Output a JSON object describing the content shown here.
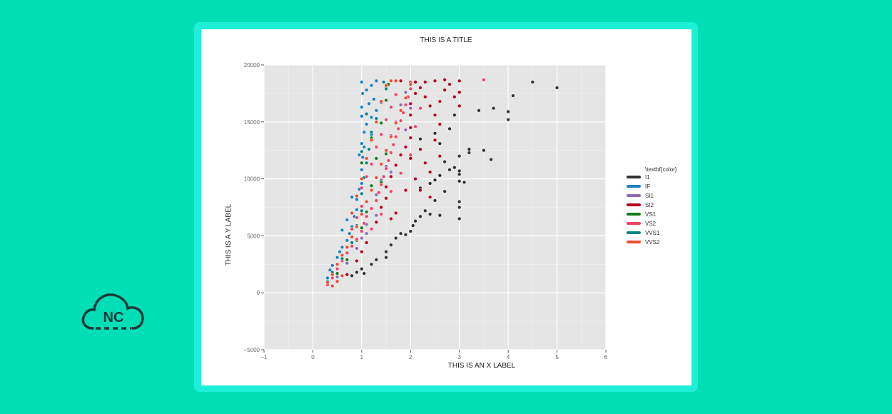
{
  "logo": {
    "text": "NC",
    "color": "#1d3a3a"
  },
  "chart_data": {
    "type": "scatter",
    "title": "THIS IS A TITLE",
    "xlabel": "THIS IS AN X LABEL",
    "ylabel": "THIS IS A Y LABEL",
    "xlim": [
      -1,
      6
    ],
    "ylim": [
      -5000,
      20000
    ],
    "xticks": [
      -1,
      0,
      1,
      2,
      3,
      4,
      5,
      6
    ],
    "yticks": [
      -5000,
      0,
      5000,
      10000,
      15000,
      20000
    ],
    "grid": true,
    "background": "#e5e5e5",
    "legend": {
      "title": "\\textbf{color}",
      "placement": "right",
      "entries": [
        {
          "name": "I1",
          "color": "#333333"
        },
        {
          "name": "IF",
          "color": "#1b82c0"
        },
        {
          "name": "SI1",
          "color": "#8c6bb1"
        },
        {
          "name": "SI2",
          "color": "#b4001e"
        },
        {
          "name": "VS1",
          "color": "#177d1a"
        },
        {
          "name": "VS2",
          "color": "#ee4466"
        },
        {
          "name": "VVS1",
          "color": "#0f8383"
        },
        {
          "name": "VVS2",
          "color": "#f44a30"
        }
      ]
    },
    "series": [
      {
        "name": "I1",
        "color": "#333333",
        "points": [
          [
            0.8,
            1500
          ],
          [
            0.9,
            1800
          ],
          [
            1.0,
            2100
          ],
          [
            1.05,
            1700
          ],
          [
            1.2,
            2500
          ],
          [
            1.3,
            2900
          ],
          [
            1.5,
            3100
          ],
          [
            1.5,
            3600
          ],
          [
            1.6,
            4200
          ],
          [
            1.7,
            4800
          ],
          [
            1.8,
            5200
          ],
          [
            1.9,
            5100
          ],
          [
            2.0,
            5400
          ],
          [
            2.05,
            5900
          ],
          [
            2.1,
            6300
          ],
          [
            2.2,
            6700
          ],
          [
            2.3,
            7200
          ],
          [
            2.4,
            6900
          ],
          [
            2.5,
            8100
          ],
          [
            2.6,
            6800
          ],
          [
            2.7,
            8900
          ],
          [
            2.2,
            9200
          ],
          [
            2.4,
            9600
          ],
          [
            2.5,
            9900
          ],
          [
            2.6,
            10300
          ],
          [
            2.8,
            10800
          ],
          [
            3.0,
            10400
          ],
          [
            3.0,
            9800
          ],
          [
            3.0,
            10700
          ],
          [
            3.0,
            6500
          ],
          [
            3.0,
            8000
          ],
          [
            3.0,
            7500
          ],
          [
            3.1,
            9700
          ],
          [
            2.9,
            11000
          ],
          [
            2.7,
            11500
          ],
          [
            3.0,
            12000
          ],
          [
            3.2,
            12300
          ],
          [
            3.2,
            12600
          ],
          [
            3.5,
            12500
          ],
          [
            3.65,
            11700
          ],
          [
            2.6,
            13100
          ],
          [
            2.8,
            14400
          ],
          [
            2.9,
            15600
          ],
          [
            3.4,
            16000
          ],
          [
            3.7,
            16200
          ],
          [
            4.0,
            15200
          ],
          [
            4.0,
            15900
          ],
          [
            4.1,
            17300
          ],
          [
            4.5,
            18500
          ],
          [
            5.0,
            18000
          ],
          [
            2.2,
            13500
          ],
          [
            2.5,
            14000
          ]
        ]
      },
      {
        "name": "IF",
        "color": "#1b82c0",
        "points": [
          [
            0.3,
            1300
          ],
          [
            0.35,
            2000
          ],
          [
            0.4,
            2400
          ],
          [
            0.5,
            3100
          ],
          [
            0.55,
            3600
          ],
          [
            0.6,
            4000
          ],
          [
            0.7,
            4600
          ],
          [
            0.75,
            5200
          ],
          [
            0.8,
            5800
          ],
          [
            0.85,
            6700
          ],
          [
            0.9,
            7300
          ],
          [
            0.9,
            8200
          ],
          [
            0.95,
            9100
          ],
          [
            1.0,
            9600
          ],
          [
            1.0,
            10800
          ],
          [
            1.02,
            11900
          ],
          [
            1.0,
            13100
          ],
          [
            1.05,
            14100
          ],
          [
            1.0,
            15500
          ],
          [
            1.0,
            16300
          ],
          [
            1.02,
            17500
          ],
          [
            1.0,
            18500
          ],
          [
            1.1,
            17800
          ],
          [
            1.15,
            16600
          ],
          [
            1.2,
            15400
          ],
          [
            1.2,
            18200
          ],
          [
            1.3,
            18600
          ],
          [
            1.25,
            17000
          ],
          [
            1.1,
            14800
          ],
          [
            1.05,
            12800
          ],
          [
            0.95,
            12100
          ],
          [
            0.8,
            8400
          ],
          [
            0.7,
            6400
          ],
          [
            0.6,
            5500
          ],
          [
            1.3,
            16000
          ],
          [
            1.2,
            13900
          ]
        ]
      },
      {
        "name": "SI1",
        "color": "#8c6bb1",
        "points": [
          [
            0.5,
            1400
          ],
          [
            0.7,
            2600
          ],
          [
            0.9,
            3900
          ],
          [
            1.0,
            4800
          ],
          [
            1.1,
            6000
          ],
          [
            1.2,
            7400
          ],
          [
            1.3,
            8600
          ],
          [
            1.4,
            9900
          ],
          [
            1.5,
            11100
          ],
          [
            1.5,
            12400
          ],
          [
            1.6,
            13800
          ],
          [
            1.7,
            15000
          ],
          [
            1.8,
            16500
          ],
          [
            1.9,
            17600
          ],
          [
            2.0,
            18400
          ],
          [
            1.3,
            6800
          ],
          [
            1.1,
            5200
          ],
          [
            1.6,
            10600
          ],
          [
            1.9,
            14300
          ],
          [
            2.0,
            16200
          ]
        ]
      },
      {
        "name": "SI2",
        "color": "#b4001e",
        "points": [
          [
            0.7,
            1600
          ],
          [
            0.9,
            2800
          ],
          [
            1.0,
            3600
          ],
          [
            1.1,
            4400
          ],
          [
            1.2,
            5600
          ],
          [
            1.3,
            6200
          ],
          [
            1.4,
            7500
          ],
          [
            1.5,
            8300
          ],
          [
            1.5,
            9300
          ],
          [
            1.6,
            10200
          ],
          [
            1.7,
            11200
          ],
          [
            1.8,
            12100
          ],
          [
            1.9,
            12800
          ],
          [
            2.0,
            13600
          ],
          [
            2.0,
            14500
          ],
          [
            2.0,
            15600
          ],
          [
            2.0,
            16600
          ],
          [
            2.1,
            17500
          ],
          [
            2.1,
            18500
          ],
          [
            2.2,
            18000
          ],
          [
            2.3,
            17200
          ],
          [
            2.4,
            16400
          ],
          [
            2.5,
            15600
          ],
          [
            2.6,
            14800
          ],
          [
            2.2,
            12600
          ],
          [
            2.3,
            11400
          ],
          [
            2.4,
            10600
          ],
          [
            2.5,
            13400
          ],
          [
            2.6,
            16800
          ],
          [
            2.7,
            17800
          ],
          [
            2.8,
            18300
          ],
          [
            2.9,
            17200
          ],
          [
            3.0,
            18600
          ],
          [
            3.0,
            17600
          ],
          [
            3.0,
            16400
          ],
          [
            2.5,
            18600
          ],
          [
            2.3,
            18500
          ],
          [
            2.1,
            10000
          ],
          [
            1.9,
            9000
          ],
          [
            1.7,
            7000
          ],
          [
            1.6,
            6500
          ],
          [
            2.2,
            9000
          ],
          [
            2.4,
            8400
          ],
          [
            2.0,
            11800
          ],
          [
            2.6,
            12000
          ],
          [
            2.7,
            18700
          ],
          [
            1.8,
            18600
          ]
        ]
      },
      {
        "name": "VS1",
        "color": "#177d1a",
        "points": [
          [
            0.5,
            1700
          ],
          [
            0.7,
            2900
          ],
          [
            0.9,
            4600
          ],
          [
            1.0,
            5700
          ],
          [
            1.1,
            7100
          ],
          [
            1.2,
            9400
          ],
          [
            1.3,
            11800
          ],
          [
            1.4,
            14900
          ],
          [
            1.5,
            16900
          ],
          [
            1.5,
            18100
          ],
          [
            1.5,
            12200
          ],
          [
            1.2,
            13600
          ],
          [
            1.0,
            11400
          ],
          [
            1.4,
            9700
          ],
          [
            1.6,
            18600
          ],
          [
            1.55,
            18300
          ]
        ]
      },
      {
        "name": "VS2",
        "color": "#ee4466",
        "points": [
          [
            0.3,
            700
          ],
          [
            0.4,
            1300
          ],
          [
            0.5,
            2100
          ],
          [
            0.6,
            2800
          ],
          [
            0.7,
            3500
          ],
          [
            0.8,
            4100
          ],
          [
            0.9,
            4700
          ],
          [
            1.0,
            5400
          ],
          [
            1.05,
            6100
          ],
          [
            1.1,
            6700
          ],
          [
            1.2,
            7400
          ],
          [
            1.3,
            8100
          ],
          [
            1.35,
            8800
          ],
          [
            1.4,
            9500
          ],
          [
            1.45,
            10200
          ],
          [
            1.5,
            10900
          ],
          [
            1.55,
            11600
          ],
          [
            1.6,
            12300
          ],
          [
            1.65,
            13000
          ],
          [
            1.7,
            13700
          ],
          [
            1.75,
            14400
          ],
          [
            1.8,
            15100
          ],
          [
            1.85,
            15800
          ],
          [
            1.9,
            16500
          ],
          [
            1.95,
            17200
          ],
          [
            2.0,
            17900
          ],
          [
            2.0,
            18500
          ],
          [
            1.2,
            11300
          ],
          [
            1.1,
            10200
          ],
          [
            1.0,
            9200
          ],
          [
            1.3,
            12800
          ],
          [
            1.4,
            13900
          ],
          [
            1.5,
            15200
          ],
          [
            1.6,
            16300
          ],
          [
            1.7,
            17400
          ],
          [
            1.0,
            7600
          ],
          [
            0.9,
            6600
          ],
          [
            0.8,
            5600
          ],
          [
            1.2,
            5600
          ],
          [
            1.4,
            6900
          ],
          [
            1.6,
            8900
          ],
          [
            1.8,
            10500
          ],
          [
            2.0,
            12100
          ],
          [
            2.1,
            14600
          ],
          [
            2.2,
            16200
          ],
          [
            3.5,
            18700
          ]
        ]
      },
      {
        "name": "VVS1",
        "color": "#0f8383",
        "points": [
          [
            0.3,
            1000
          ],
          [
            0.4,
            1800
          ],
          [
            0.6,
            3000
          ],
          [
            0.8,
            4400
          ],
          [
            0.9,
            5900
          ],
          [
            1.0,
            7200
          ],
          [
            1.0,
            8700
          ],
          [
            1.05,
            10100
          ],
          [
            1.1,
            11400
          ],
          [
            1.15,
            12600
          ],
          [
            1.2,
            14100
          ],
          [
            1.3,
            15300
          ],
          [
            1.4,
            16700
          ],
          [
            1.5,
            17900
          ],
          [
            1.45,
            18500
          ],
          [
            1.0,
            12400
          ],
          [
            1.1,
            15700
          ]
        ]
      },
      {
        "name": "VVS2",
        "color": "#f44a30",
        "points": [
          [
            0.3,
            900
          ],
          [
            0.4,
            1600
          ],
          [
            0.5,
            2500
          ],
          [
            0.6,
            3300
          ],
          [
            0.7,
            4000
          ],
          [
            0.8,
            4900
          ],
          [
            0.9,
            5800
          ],
          [
            1.0,
            6900
          ],
          [
            1.1,
            8000
          ],
          [
            1.2,
            9000
          ],
          [
            1.3,
            10100
          ],
          [
            1.4,
            11300
          ],
          [
            1.5,
            12500
          ],
          [
            1.6,
            13700
          ],
          [
            1.7,
            14900
          ],
          [
            1.8,
            16000
          ],
          [
            1.9,
            17100
          ],
          [
            2.0,
            18300
          ],
          [
            1.0,
            10000
          ],
          [
            1.1,
            11800
          ],
          [
            1.2,
            13400
          ],
          [
            1.3,
            15000
          ],
          [
            1.4,
            16800
          ],
          [
            1.5,
            18200
          ],
          [
            0.9,
            8500
          ],
          [
            0.8,
            7000
          ],
          [
            1.6,
            18600
          ],
          [
            1.7,
            18600
          ],
          [
            0.6,
            1500
          ],
          [
            0.5,
            1000
          ],
          [
            0.4,
            600
          ]
        ]
      }
    ]
  }
}
